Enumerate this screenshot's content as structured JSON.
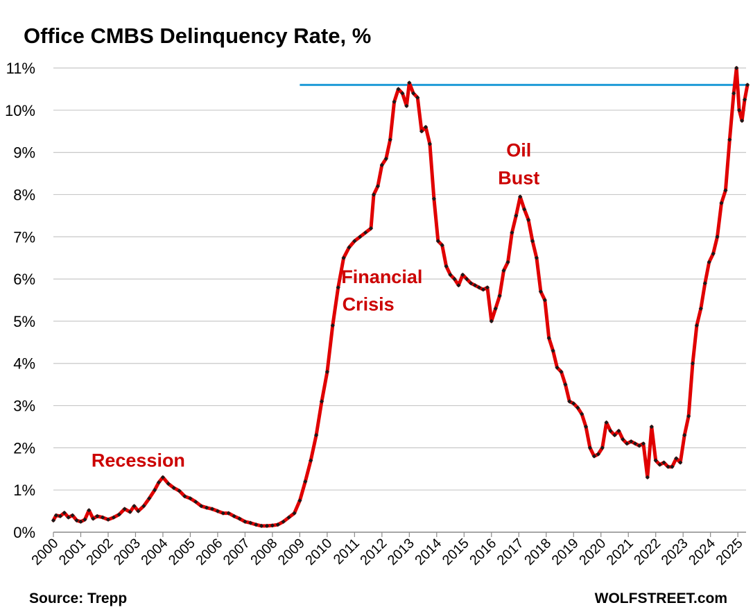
{
  "chart_data": {
    "type": "line",
    "title": "Office CMBS Delinquency Rate, %",
    "xlabel": "",
    "ylabel": "",
    "x_range": [
      2000.0,
      2025.3
    ],
    "ylim": [
      0,
      11
    ],
    "y_ticks": [
      "0%",
      "1%",
      "2%",
      "3%",
      "4%",
      "5%",
      "6%",
      "7%",
      "8%",
      "9%",
      "10%",
      "11%"
    ],
    "x_ticks": [
      "2000",
      "2001",
      "2002",
      "2003",
      "2004",
      "2005",
      "2006",
      "2007",
      "2008",
      "2009",
      "2010",
      "2011",
      "2012",
      "2013",
      "2014",
      "2015",
      "2016",
      "2017",
      "2018",
      "2019",
      "2020",
      "2021",
      "2022",
      "2023",
      "2024",
      "2025"
    ],
    "grid": true,
    "legend": "none",
    "colors": {
      "series_line": "#e00000",
      "series_markers": "#1a1a1a",
      "reference_line": "#1f9bd7",
      "annotation_text": "#cc0000",
      "grid": "#c8c8c8"
    },
    "series": [
      {
        "values": [
          [
            2000.0,
            0.28
          ],
          [
            2000.1,
            0.4
          ],
          [
            2000.25,
            0.38
          ],
          [
            2000.4,
            0.46
          ],
          [
            2000.55,
            0.35
          ],
          [
            2000.7,
            0.4
          ],
          [
            2000.85,
            0.28
          ],
          [
            2001.0,
            0.25
          ],
          [
            2001.15,
            0.3
          ],
          [
            2001.3,
            0.52
          ],
          [
            2001.45,
            0.32
          ],
          [
            2001.6,
            0.38
          ],
          [
            2001.8,
            0.35
          ],
          [
            2002.0,
            0.3
          ],
          [
            2002.2,
            0.35
          ],
          [
            2002.4,
            0.42
          ],
          [
            2002.6,
            0.55
          ],
          [
            2002.8,
            0.48
          ],
          [
            2002.95,
            0.62
          ],
          [
            2003.1,
            0.5
          ],
          [
            2003.3,
            0.62
          ],
          [
            2003.5,
            0.8
          ],
          [
            2003.7,
            1.0
          ],
          [
            2003.85,
            1.18
          ],
          [
            2004.0,
            1.3
          ],
          [
            2004.2,
            1.15
          ],
          [
            2004.4,
            1.05
          ],
          [
            2004.6,
            0.98
          ],
          [
            2004.8,
            0.85
          ],
          [
            2005.0,
            0.8
          ],
          [
            2005.2,
            0.72
          ],
          [
            2005.4,
            0.62
          ],
          [
            2005.6,
            0.58
          ],
          [
            2005.8,
            0.55
          ],
          [
            2006.0,
            0.5
          ],
          [
            2006.2,
            0.45
          ],
          [
            2006.4,
            0.45
          ],
          [
            2006.6,
            0.38
          ],
          [
            2006.8,
            0.32
          ],
          [
            2007.0,
            0.25
          ],
          [
            2007.2,
            0.22
          ],
          [
            2007.4,
            0.18
          ],
          [
            2007.6,
            0.15
          ],
          [
            2007.8,
            0.15
          ],
          [
            2008.0,
            0.16
          ],
          [
            2008.2,
            0.18
          ],
          [
            2008.4,
            0.25
          ],
          [
            2008.6,
            0.35
          ],
          [
            2008.8,
            0.45
          ],
          [
            2009.0,
            0.75
          ],
          [
            2009.2,
            1.2
          ],
          [
            2009.4,
            1.7
          ],
          [
            2009.6,
            2.3
          ],
          [
            2009.8,
            3.1
          ],
          [
            2010.0,
            3.8
          ],
          [
            2010.2,
            4.9
          ],
          [
            2010.4,
            5.8
          ],
          [
            2010.6,
            6.5
          ],
          [
            2010.8,
            6.75
          ],
          [
            2011.0,
            6.9
          ],
          [
            2011.2,
            7.0
          ],
          [
            2011.4,
            7.1
          ],
          [
            2011.6,
            7.2
          ],
          [
            2011.7,
            8.0
          ],
          [
            2011.85,
            8.2
          ],
          [
            2012.0,
            8.7
          ],
          [
            2012.15,
            8.85
          ],
          [
            2012.3,
            9.3
          ],
          [
            2012.45,
            10.2
          ],
          [
            2012.6,
            10.5
          ],
          [
            2012.75,
            10.4
          ],
          [
            2012.9,
            10.1
          ],
          [
            2013.0,
            10.65
          ],
          [
            2013.15,
            10.4
          ],
          [
            2013.3,
            10.3
          ],
          [
            2013.45,
            9.5
          ],
          [
            2013.6,
            9.6
          ],
          [
            2013.75,
            9.2
          ],
          [
            2013.9,
            7.9
          ],
          [
            2014.05,
            6.9
          ],
          [
            2014.2,
            6.8
          ],
          [
            2014.35,
            6.3
          ],
          [
            2014.5,
            6.1
          ],
          [
            2014.65,
            6.0
          ],
          [
            2014.8,
            5.85
          ],
          [
            2014.95,
            6.1
          ],
          [
            2015.1,
            6.0
          ],
          [
            2015.25,
            5.9
          ],
          [
            2015.4,
            5.85
          ],
          [
            2015.55,
            5.8
          ],
          [
            2015.7,
            5.75
          ],
          [
            2015.85,
            5.8
          ],
          [
            2016.0,
            5.0
          ],
          [
            2016.15,
            5.3
          ],
          [
            2016.3,
            5.6
          ],
          [
            2016.45,
            6.2
          ],
          [
            2016.6,
            6.4
          ],
          [
            2016.75,
            7.1
          ],
          [
            2016.9,
            7.5
          ],
          [
            2017.05,
            7.95
          ],
          [
            2017.2,
            7.65
          ],
          [
            2017.35,
            7.4
          ],
          [
            2017.5,
            6.9
          ],
          [
            2017.65,
            6.5
          ],
          [
            2017.8,
            5.7
          ],
          [
            2017.95,
            5.5
          ],
          [
            2018.1,
            4.6
          ],
          [
            2018.25,
            4.3
          ],
          [
            2018.4,
            3.9
          ],
          [
            2018.55,
            3.8
          ],
          [
            2018.7,
            3.5
          ],
          [
            2018.85,
            3.1
          ],
          [
            2019.0,
            3.05
          ],
          [
            2019.15,
            2.95
          ],
          [
            2019.3,
            2.8
          ],
          [
            2019.45,
            2.5
          ],
          [
            2019.6,
            2.0
          ],
          [
            2019.75,
            1.8
          ],
          [
            2019.9,
            1.85
          ],
          [
            2020.05,
            2.0
          ],
          [
            2020.2,
            2.6
          ],
          [
            2020.35,
            2.4
          ],
          [
            2020.5,
            2.3
          ],
          [
            2020.65,
            2.4
          ],
          [
            2020.8,
            2.2
          ],
          [
            2020.95,
            2.1
          ],
          [
            2021.1,
            2.15
          ],
          [
            2021.25,
            2.1
          ],
          [
            2021.4,
            2.05
          ],
          [
            2021.55,
            2.1
          ],
          [
            2021.7,
            1.3
          ],
          [
            2021.85,
            2.5
          ],
          [
            2022.0,
            1.7
          ],
          [
            2022.15,
            1.6
          ],
          [
            2022.3,
            1.65
          ],
          [
            2022.45,
            1.55
          ],
          [
            2022.6,
            1.55
          ],
          [
            2022.75,
            1.75
          ],
          [
            2022.9,
            1.65
          ],
          [
            2023.05,
            2.3
          ],
          [
            2023.2,
            2.75
          ],
          [
            2023.35,
            4.0
          ],
          [
            2023.5,
            4.9
          ],
          [
            2023.65,
            5.3
          ],
          [
            2023.8,
            5.9
          ],
          [
            2023.95,
            6.4
          ],
          [
            2024.1,
            6.6
          ],
          [
            2024.25,
            7.0
          ],
          [
            2024.4,
            7.8
          ],
          [
            2024.55,
            8.1
          ],
          [
            2024.7,
            9.3
          ],
          [
            2024.85,
            10.4
          ],
          [
            2024.95,
            11.0
          ],
          [
            2025.05,
            10.0
          ],
          [
            2025.15,
            9.75
          ],
          [
            2025.25,
            10.25
          ],
          [
            2025.35,
            10.6
          ]
        ]
      }
    ],
    "reference_lines": [
      {
        "type": "horizontal",
        "y": 10.6,
        "x_from": 2009.0,
        "x_to": 2025.35
      }
    ],
    "annotations": [
      {
        "text": "Recession",
        "x": 2003.1,
        "y": 1.55
      },
      {
        "text": "Financial",
        "x": 2012.0,
        "y": 5.9
      },
      {
        "text": "Crisis",
        "x": 2011.5,
        "y": 5.25
      },
      {
        "text": "Oil",
        "x": 2017.0,
        "y": 8.9
      },
      {
        "text": "Bust",
        "x": 2017.0,
        "y": 8.25
      }
    ]
  },
  "footer": {
    "source": "Source: Trepp",
    "brand": "WOLFSTREET.com"
  }
}
